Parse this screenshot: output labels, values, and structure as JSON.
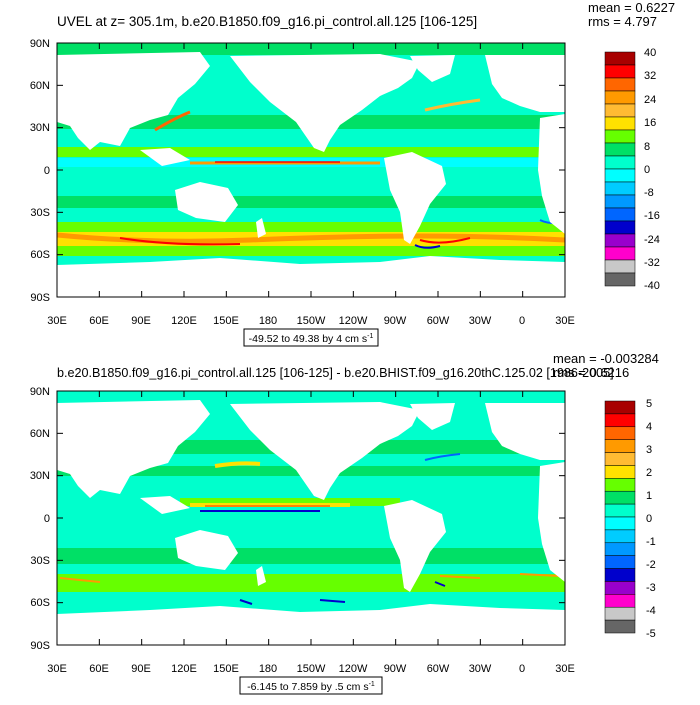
{
  "panels": [
    {
      "title": "UVEL at z= 305.1m, b.e20.B1850.f09_g16.pi_control.all.125 [106-125]",
      "stats": [
        "mean = 0.6227",
        "rms = 4.797"
      ],
      "lat_labels": [
        "90N",
        "60N",
        "30N",
        "0",
        "30S",
        "60S",
        "90S"
      ],
      "lon_labels": [
        "30E",
        "60E",
        "90E",
        "120E",
        "150E",
        "180",
        "150W",
        "120W",
        "90W",
        "60W",
        "30W",
        "0",
        "30E"
      ],
      "range_label": "-49.52 to 49.38 by 4 cm s",
      "range_sup": "-1",
      "colorbar_labels": [
        "40",
        "32",
        "24",
        "16",
        "8",
        "0",
        "-8",
        "-16",
        "-24",
        "-32",
        "-40"
      ]
    },
    {
      "title": "b.e20.B1850.f09_g16.pi_control.all.125 [106-125] - b.e20.BHIST.f09_g16.20thC.125.02 [1986-2005]",
      "stats": [
        "mean = -0.003284",
        "rms = 0.6216"
      ],
      "lat_labels": [
        "90N",
        "60N",
        "30N",
        "0",
        "30S",
        "60S",
        "90S"
      ],
      "lon_labels": [
        "30E",
        "60E",
        "90E",
        "120E",
        "150E",
        "180",
        "150W",
        "120W",
        "90W",
        "60W",
        "30W",
        "0",
        "30E"
      ],
      "range_label": "-6.145 to 7.859 by .5 cm s",
      "range_sup": "-1",
      "colorbar_labels": [
        "5",
        "4",
        "3",
        "2",
        "1",
        "0",
        "-1",
        "-2",
        "-3",
        "-4",
        "-5"
      ]
    }
  ],
  "colors": {
    "palette": [
      "#a80000",
      "#ff0000",
      "#ff6600",
      "#ff9a00",
      "#ffbb33",
      "#ffe100",
      "#66ff00",
      "#00e066",
      "#00ffcc",
      "#00ffff",
      "#00ccff",
      "#0099ff",
      "#0066ff",
      "#0000cc",
      "#9900cc",
      "#ff00cc",
      "#c8c8c8",
      "#666666"
    ],
    "ocean_base": "#00ffcc",
    "land": "#ffffff"
  }
}
